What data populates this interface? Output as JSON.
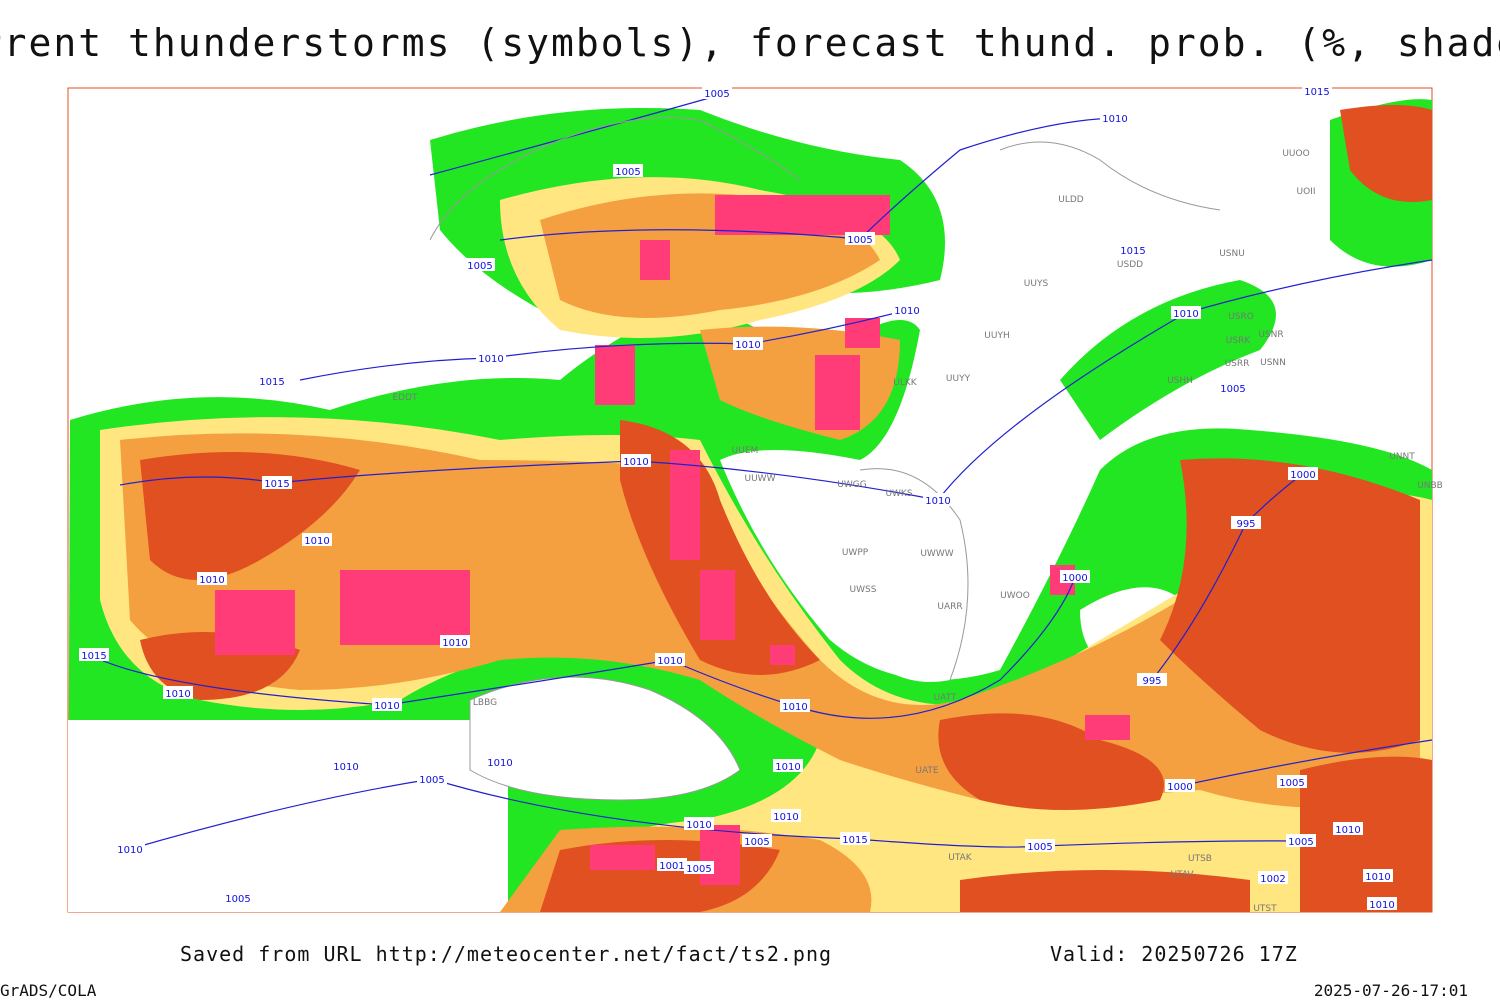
{
  "header": {
    "title": "Current thunderstorms (symbols), forecast thund. prob. (%, shaded)"
  },
  "map": {
    "isobar_labels": [
      "1005",
      "1010",
      "1015",
      "1005",
      "1005",
      "1005",
      "1015",
      "1010",
      "1010",
      "1010",
      "1010",
      "1015",
      "1005",
      "1010",
      "1015",
      "1000",
      "1010",
      "995",
      "1010",
      "1010",
      "1000",
      "1010",
      "1015",
      "1010",
      "995",
      "1010",
      "1010",
      "1010",
      "1010",
      "1010",
      "1010",
      "1005",
      "1000",
      "1005",
      "1010",
      "1010",
      "1015",
      "1005",
      "1001",
      "1005",
      "1005",
      "1010",
      "1005",
      "1010",
      "1002",
      "1010",
      "1005",
      "1010"
    ],
    "station_labels": [
      "ULDD",
      "UUOO",
      "UOII",
      "USDD",
      "USNU",
      "UUYS",
      "UUYH",
      "USRO",
      "USRK",
      "USNR",
      "USRR",
      "USNN",
      "UUYY",
      "USHH",
      "ULKK",
      "UUEM",
      "UUWW",
      "UWGG",
      "UWKS",
      "UNNT",
      "UNBB",
      "UWPP",
      "UWWW",
      "UWSS",
      "UARR",
      "UWOO",
      "UATT",
      "UATE",
      "UTAK",
      "UTSB",
      "UTAV",
      "UTST",
      "EDDT",
      "LBBG"
    ]
  },
  "footer": {
    "source": "Saved from URL http://meteocenter.net/fact/ts2.png",
    "valid": "Valid: 20250726 17Z",
    "software": "GrADS/COLA",
    "timestamp": "2025-07-26-17:01"
  }
}
